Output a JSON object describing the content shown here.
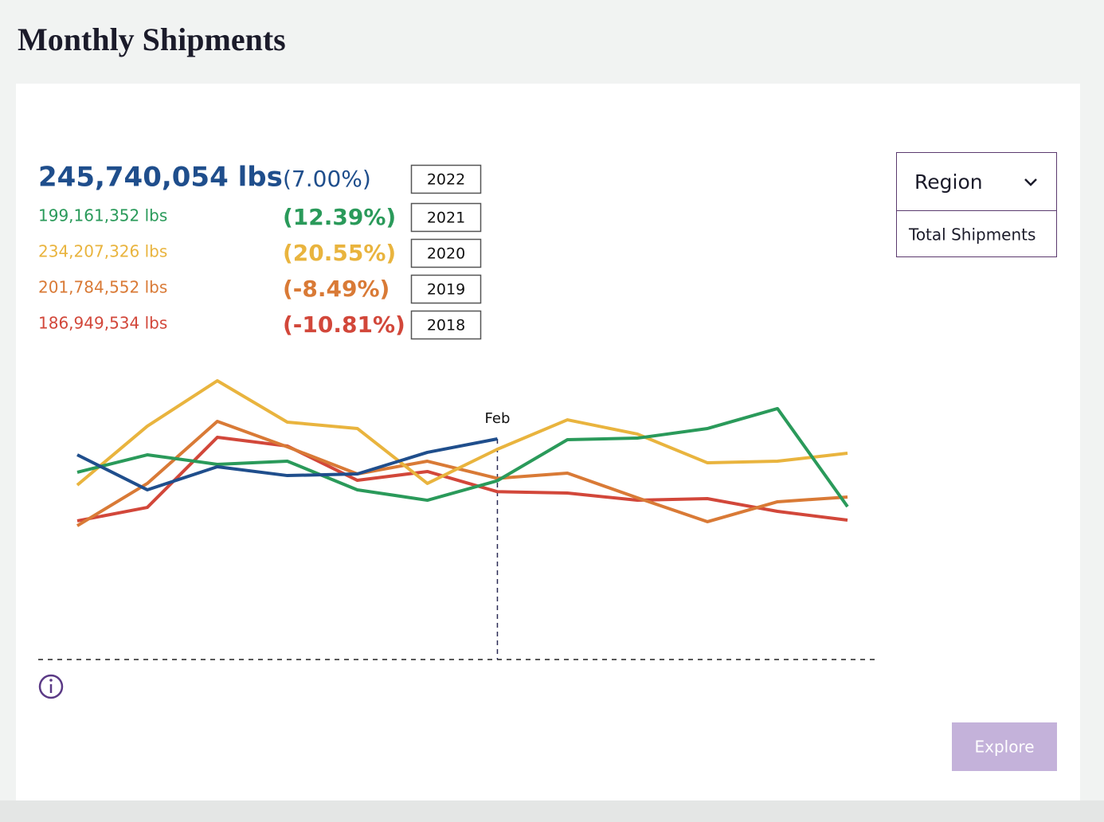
{
  "header": {
    "title": "Monthly Shipments"
  },
  "chart_data": {
    "type": "line",
    "categories": [
      null,
      null,
      null,
      null,
      null,
      null,
      "Feb",
      null,
      null,
      null,
      null,
      null
    ],
    "ylim": [
      0,
      350000000
    ],
    "series": [
      {
        "name": "2022",
        "color": "#1f4e8c",
        "change": "(7.00%)",
        "values": [
          228000000,
          189000000,
          214700000,
          204900000,
          206700000,
          230700000,
          245740054,
          null,
          null,
          null,
          null,
          null
        ],
        "value_labels": [
          null,
          null,
          null,
          null,
          null,
          null,
          "245,740,054 lbs",
          null,
          null,
          null,
          null,
          null
        ]
      },
      {
        "name": "2021",
        "color": "#2a9a5a",
        "change": "(12.39%)",
        "values": [
          208500000,
          228000000,
          217400000,
          220900000,
          189000000,
          177400000,
          199161352,
          244900000,
          246600000,
          257300000,
          279500000,
          170300000
        ],
        "value_labels": [
          null,
          null,
          null,
          null,
          null,
          null,
          "199,161,352 lbs",
          null,
          null,
          null,
          null,
          null
        ]
      },
      {
        "name": "2020",
        "color": "#e9b43e",
        "change": "(20.55%)",
        "values": [
          194300000,
          259900000,
          310500000,
          264400000,
          257300000,
          196100000,
          234207326,
          267000000,
          251100000,
          219100000,
          220900000,
          229800000
        ],
        "value_labels": [
          null,
          null,
          null,
          null,
          null,
          null,
          "234,207,326 lbs",
          null,
          null,
          null,
          null,
          null
        ]
      },
      {
        "name": "2019",
        "color": "#d97a36",
        "change": "(-8.49%)",
        "values": [
          149000000,
          196100000,
          265300000,
          236900000,
          206700000,
          220900000,
          201784552,
          207600000,
          180100000,
          153500000,
          175700000,
          181000000
        ],
        "value_labels": [
          null,
          null,
          null,
          null,
          null,
          null,
          "201,784,552 lbs",
          null,
          null,
          null,
          null,
          null
        ]
      },
      {
        "name": "2018",
        "color": "#d2473a",
        "change": "(-10.81%)",
        "values": [
          154400000,
          169400000,
          247500000,
          237800000,
          199600000,
          209400000,
          186949534,
          185400000,
          177400000,
          179200000,
          165000000,
          155300000
        ],
        "value_labels": [
          null,
          null,
          null,
          null,
          null,
          null,
          "186,949,534 lbs",
          null,
          null,
          null,
          null,
          null
        ]
      }
    ]
  },
  "controls": {
    "dropdown_label": "Region",
    "dropdown_option": "Total Shipments",
    "button": "Explore"
  }
}
